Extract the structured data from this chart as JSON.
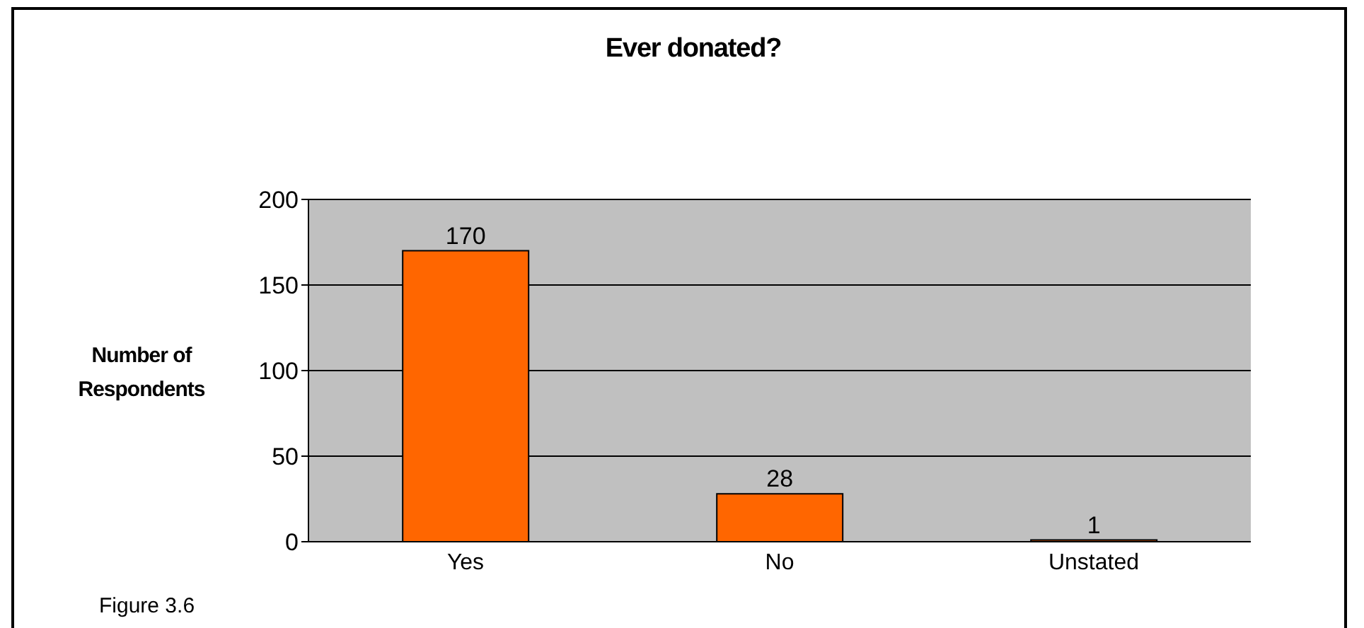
{
  "chart_data": {
    "type": "bar",
    "title": "Ever donated?",
    "ylabel": "Number of Respondents",
    "categories": [
      "Yes",
      "No",
      "Unstated"
    ],
    "values": [
      170,
      28,
      1
    ],
    "color": "#ff6600",
    "ylim": [
      0,
      200
    ],
    "yticks": [
      0,
      50,
      100,
      150,
      200
    ],
    "grid": "y",
    "data_labels": true,
    "annotations": [
      "Figure 3.6"
    ]
  }
}
